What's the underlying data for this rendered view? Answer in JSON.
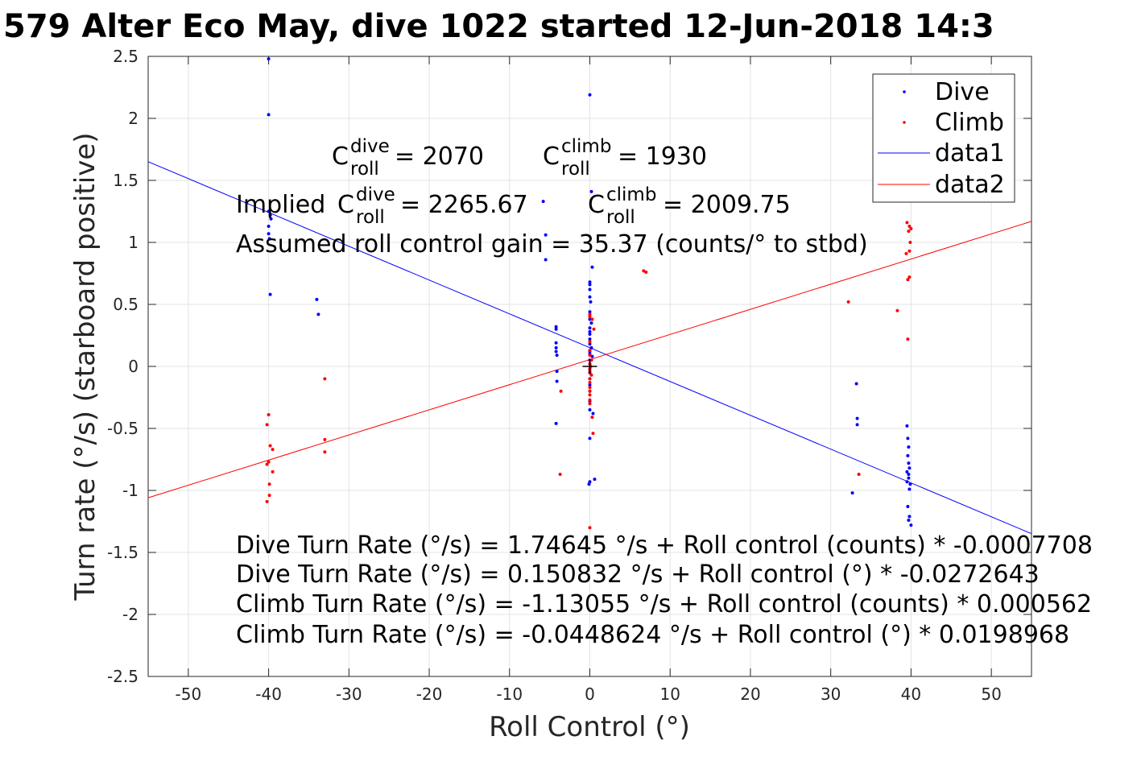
{
  "chart_data": {
    "type": "scatter",
    "title": "579 Alter Eco May, dive 1022 started 12-Jun-2018 14:3",
    "xlabel": "Roll Control (°)",
    "ylabel": "Turn rate (°/s) (starboard positive)",
    "xlim": [
      -55,
      55
    ],
    "ylim": [
      -2.5,
      2.5
    ],
    "xticks": [
      -50,
      -40,
      -30,
      -20,
      -10,
      0,
      10,
      20,
      30,
      40,
      50
    ],
    "yticks": [
      -2.5,
      -2,
      -1.5,
      -1,
      -0.5,
      0,
      0.5,
      1,
      1.5,
      2,
      2.5
    ],
    "grid": true,
    "legend_position": "top-right",
    "legend": [
      "Dive",
      "Climb",
      "data1",
      "data2"
    ],
    "colors": {
      "dive": "#0000ff",
      "climb": "#ff0000"
    },
    "series": [
      {
        "name": "Dive",
        "kind": "points",
        "color": "#0000ff",
        "points": [
          [
            -40,
            2.48
          ],
          [
            -40,
            2.03
          ],
          [
            -40,
            1.25
          ],
          [
            -39.8,
            1.22
          ],
          [
            -39.7,
            1.19
          ],
          [
            -40,
            1.13
          ],
          [
            -40,
            1.07
          ],
          [
            -39.9,
            1.03
          ],
          [
            -39.8,
            0.58
          ],
          [
            -34,
            0.54
          ],
          [
            -33.8,
            0.42
          ],
          [
            -5.8,
            1.33
          ],
          [
            -5.5,
            1.06
          ],
          [
            -5.5,
            0.86
          ],
          [
            -4.2,
            0.32
          ],
          [
            -4.2,
            0.3
          ],
          [
            -4.2,
            0.19
          ],
          [
            -4.2,
            0.15
          ],
          [
            -4.2,
            0.12
          ],
          [
            -4.1,
            0.09
          ],
          [
            -4.1,
            -0.04
          ],
          [
            -4.1,
            -0.12
          ],
          [
            -4.2,
            -0.46
          ],
          [
            0,
            2.19
          ],
          [
            0.2,
            1.41
          ],
          [
            0.3,
            0.8
          ],
          [
            0,
            0.68
          ],
          [
            0,
            0.66
          ],
          [
            0,
            0.62
          ],
          [
            0,
            0.56
          ],
          [
            0.1,
            0.52
          ],
          [
            0,
            0.44
          ],
          [
            0,
            0.42
          ],
          [
            0,
            0.38
          ],
          [
            0.2,
            0.35
          ],
          [
            0,
            0.31
          ],
          [
            0,
            0.28
          ],
          [
            0,
            0.26
          ],
          [
            0,
            0.22
          ],
          [
            0,
            0.18
          ],
          [
            0.2,
            0.15
          ],
          [
            0,
            0.12
          ],
          [
            0,
            0.1
          ],
          [
            0.3,
            0.08
          ],
          [
            0,
            0.05
          ],
          [
            0,
            0.02
          ],
          [
            0,
            -0.02
          ],
          [
            0,
            -0.05
          ],
          [
            0,
            -0.1
          ],
          [
            0,
            -0.15
          ],
          [
            0,
            -0.2
          ],
          [
            0,
            -0.28
          ],
          [
            0,
            -0.35
          ],
          [
            0.4,
            -0.38
          ],
          [
            0,
            -0.58
          ],
          [
            0,
            -0.93
          ],
          [
            -0.1,
            -0.95
          ],
          [
            0.6,
            -0.91
          ],
          [
            32.7,
            -1.02
          ],
          [
            33.2,
            -0.14
          ],
          [
            33.3,
            -0.42
          ],
          [
            33.3,
            -0.47
          ],
          [
            39.5,
            -0.48
          ],
          [
            39.6,
            -0.58
          ],
          [
            39.7,
            -0.65
          ],
          [
            39.6,
            -0.72
          ],
          [
            39.7,
            -0.78
          ],
          [
            39.8,
            -0.82
          ],
          [
            39.5,
            -0.85
          ],
          [
            39.7,
            -0.87
          ],
          [
            39.7,
            -0.9
          ],
          [
            39.5,
            -0.93
          ],
          [
            39.9,
            -0.95
          ],
          [
            39.8,
            -0.99
          ],
          [
            39.6,
            -1.13
          ],
          [
            39.8,
            -1.21
          ],
          [
            39.7,
            -1.24
          ],
          [
            40,
            -1.28
          ]
        ]
      },
      {
        "name": "Climb",
        "kind": "points",
        "color": "#ff0000",
        "points": [
          [
            -40,
            -0.39
          ],
          [
            -40.2,
            -0.47
          ],
          [
            -39.8,
            -0.64
          ],
          [
            -39.5,
            -0.67
          ],
          [
            -40,
            -0.77
          ],
          [
            -40.2,
            -0.79
          ],
          [
            -39.5,
            -0.85
          ],
          [
            -39.9,
            -0.95
          ],
          [
            -39.9,
            -1.04
          ],
          [
            -40.2,
            -1.09
          ],
          [
            -33,
            -0.1
          ],
          [
            -33,
            -0.59
          ],
          [
            -33,
            -0.69
          ],
          [
            -3.6,
            -0.2
          ],
          [
            -3.7,
            -0.87
          ],
          [
            0,
            0.42
          ],
          [
            0,
            0.4
          ],
          [
            0.3,
            0.38
          ],
          [
            0.5,
            0.3
          ],
          [
            0,
            0.2
          ],
          [
            0,
            0.13
          ],
          [
            0,
            0.09
          ],
          [
            0.2,
            0.05
          ],
          [
            0,
            0.02
          ],
          [
            0.1,
            0
          ],
          [
            0,
            -0.02
          ],
          [
            0,
            -0.04
          ],
          [
            0.2,
            -0.07
          ],
          [
            0,
            -0.1
          ],
          [
            0,
            -0.13
          ],
          [
            0,
            -0.17
          ],
          [
            0,
            -0.2
          ],
          [
            0,
            -0.23
          ],
          [
            0,
            -0.27
          ],
          [
            0,
            -0.3
          ],
          [
            0.3,
            -0.41
          ],
          [
            0.4,
            -0.54
          ],
          [
            0,
            -1.3
          ],
          [
            6.7,
            0.77
          ],
          [
            7,
            0.76
          ],
          [
            32.2,
            0.52
          ],
          [
            33.5,
            -0.87
          ],
          [
            38.3,
            0.45
          ],
          [
            39.6,
            0.22
          ],
          [
            39.6,
            0.7
          ],
          [
            39.8,
            0.72
          ],
          [
            39.4,
            0.91
          ],
          [
            39.8,
            0.93
          ],
          [
            39.9,
            1.0
          ],
          [
            39.7,
            1.09
          ],
          [
            40,
            1.11
          ],
          [
            39.8,
            1.13
          ],
          [
            39.5,
            1.16
          ]
        ]
      },
      {
        "name": "data1",
        "kind": "line",
        "color": "#0000ff",
        "x": [
          -55,
          55
        ],
        "y": [
          1.650408,
          -1.348657
        ]
      },
      {
        "name": "data2",
        "kind": "line",
        "color": "#ff0000",
        "x": [
          -55,
          55
        ],
        "y": [
          -1.059187,
          1.169462
        ]
      }
    ],
    "marker": {
      "x": 0,
      "y": 0,
      "color": "#000000"
    },
    "annotations": {
      "c_dive": {
        "base": "C",
        "sup": "dive",
        "sub": "roll",
        "value": " = 2070"
      },
      "c_climb": {
        "base": "C",
        "sup": "climb",
        "sub": "roll",
        "value": " = 1930"
      },
      "implied_dive": {
        "prefix": "Implied ",
        "base": "C",
        "sup": "dive",
        "sub": "roll",
        "value": " = 2265.67"
      },
      "implied_climb": {
        "base": "C",
        "sup": "climb",
        "sub": "roll",
        "value": " = 2009.75"
      },
      "gain": "Assumed roll control gain = 35.37 (counts/° to stbd)",
      "fit_lines": [
        "Dive Turn Rate (°/s) = 1.74645 °/s + Roll control (counts) * -0.0007708",
        "Dive Turn Rate (°/s) = 0.150832 °/s + Roll control (°) * -0.0272643",
        "Climb Turn Rate (°/s) = -1.13055 °/s + Roll control (counts) * 0.000562",
        "Climb Turn Rate (°/s) = -0.0448624 °/s + Roll control (°) * 0.0198968"
      ]
    }
  }
}
